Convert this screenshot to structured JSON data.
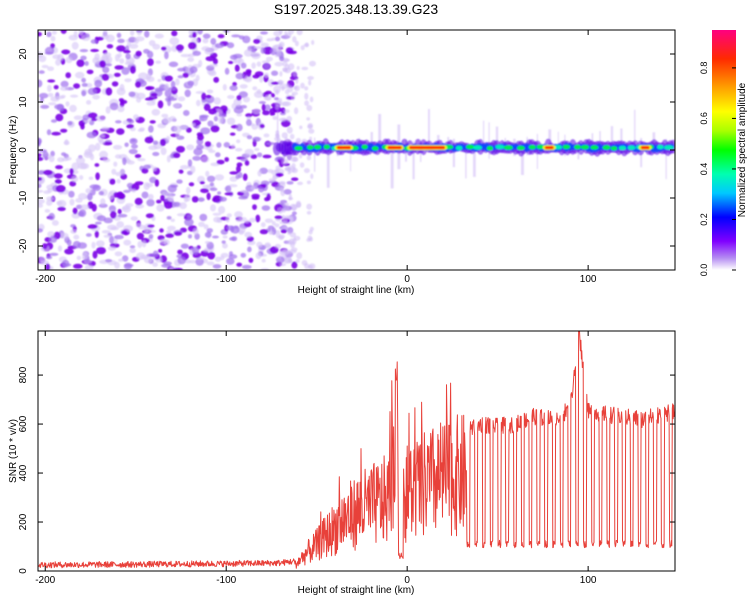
{
  "title": "S197.2025.348.13.39.G23",
  "chart_data": [
    {
      "type": "heatmap",
      "xlabel": "Height of straight line (km)",
      "ylabel": "Frequency (Hz)",
      "xlim": [
        -204,
        148
      ],
      "ylim": [
        -25,
        25
      ],
      "xticks": [
        -200,
        -100,
        0,
        100
      ],
      "yticks": [
        -20,
        -10,
        0,
        10,
        20
      ],
      "colorbar": {
        "label": "Normalized spectral amplitude",
        "range": [
          0,
          0.95
        ],
        "ticks": [
          0.0,
          0.2,
          0.4,
          0.6,
          0.8
        ],
        "colors": [
          "#ffffff",
          "#b58cf2",
          "#8000ff",
          "#0000ff",
          "#00c8ff",
          "#00ffb0",
          "#00ff00",
          "#aaff00",
          "#ffff00",
          "#ffa000",
          "#ff2a00",
          "#ff0080"
        ]
      },
      "noise_region": {
        "x_from": -204,
        "x_to": -62
      },
      "ridge": {
        "center_hz": 0.5,
        "x_from": -72,
        "x_to": 148,
        "hot_segments": [
          [
            -40,
            -30
          ],
          [
            -12,
            -2
          ],
          [
            0,
            22
          ],
          [
            75,
            82
          ],
          [
            128,
            135
          ]
        ]
      }
    },
    {
      "type": "line",
      "xlabel": "Height of straight line (km)",
      "ylabel": "SNR (10 * v/v)",
      "xlim": [
        -204,
        148
      ],
      "ylim": [
        0,
        980
      ],
      "xticks": [
        -200,
        -100,
        0,
        100
      ],
      "yticks": [
        0,
        200,
        400,
        600,
        800
      ],
      "color": "#e8413a",
      "series": [
        {
          "name": "SNR",
          "x": [
            -204,
            -150,
            -100,
            -70,
            -62,
            -56,
            -50,
            -45,
            -40,
            -35,
            -30,
            -25,
            -20,
            -15,
            -10,
            -6,
            -5,
            0,
            5,
            10,
            15,
            20,
            25,
            30,
            33,
            40,
            50,
            60,
            70,
            80,
            90,
            95,
            100,
            110,
            120,
            130,
            140,
            148
          ],
          "values": [
            20,
            22,
            25,
            28,
            35,
            100,
            150,
            200,
            250,
            300,
            330,
            360,
            380,
            400,
            420,
            780,
            440,
            455,
            480,
            500,
            520,
            540,
            550,
            560,
            565,
            600,
            590,
            600,
            630,
            620,
            660,
            980,
            650,
            640,
            630,
            620,
            640,
            650
          ]
        }
      ],
      "annotations": {
        "dropout_low": 110,
        "dropout_x_from": 33
      }
    }
  ]
}
